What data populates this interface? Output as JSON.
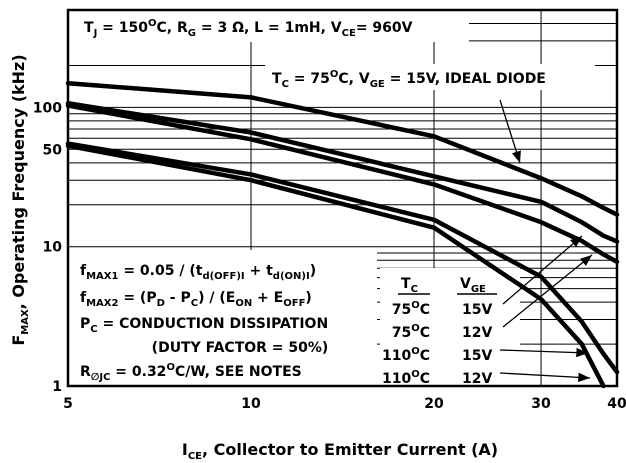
{
  "chart_data": {
    "type": "line",
    "title": [
      [
        "T",
        "n"
      ],
      [
        "J",
        "sub"
      ],
      [
        " = 150",
        "n"
      ],
      [
        "O",
        "sup"
      ],
      [
        "C, R",
        "n"
      ],
      [
        "G",
        "sub"
      ],
      [
        " = 3 Ω, L = 1mH, V",
        "n"
      ],
      [
        "CE",
        "sub"
      ],
      [
        "= 960V",
        "n"
      ]
    ],
    "xlabel": [
      [
        "I",
        "n"
      ],
      [
        "CE",
        "sub"
      ],
      [
        ", Collector to Emitter Current (A)",
        "n"
      ]
    ],
    "ylabel": [
      [
        "F",
        "n"
      ],
      [
        "MAX",
        "sub"
      ],
      [
        ", Operating Frequency (kHz)",
        "n"
      ]
    ],
    "xscale": "log",
    "yscale": "log",
    "x": [
      5,
      10,
      20,
      30,
      35,
      38,
      40
    ],
    "xlim": [
      5,
      40
    ],
    "ylim": [
      1,
      500
    ],
    "xticks": [
      5,
      10,
      20,
      30,
      40
    ],
    "yticks": [
      1,
      10,
      50,
      100
    ],
    "ygrid": [
      2,
      3,
      4,
      5,
      6,
      7,
      8,
      9,
      20,
      30,
      40,
      60,
      70,
      80,
      90,
      200,
      300,
      400
    ],
    "grid": true,
    "series": [
      {
        "color": "#000000",
        "label": [
          [
            "T",
            "n"
          ],
          [
            "C",
            "sub"
          ],
          [
            " = 75",
            "n"
          ],
          [
            "O",
            "sup"
          ],
          [
            "C, V",
            "n"
          ],
          [
            "GE",
            "sub"
          ],
          [
            " = 15V, IDEAL DIODE",
            "n"
          ]
        ],
        "values": [
          149,
          118,
          62,
          31,
          23,
          19,
          17
        ]
      },
      {
        "color": "#000000",
        "tc": [
          [
            "75",
            "n"
          ],
          [
            "O",
            "sup"
          ],
          [
            "C",
            "n"
          ]
        ],
        "vge": [
          [
            "15V",
            "n"
          ]
        ],
        "values": [
          107,
          66,
          32,
          21,
          15,
          12,
          10.9
        ]
      },
      {
        "color": "#000000",
        "tc": [
          [
            "75",
            "n"
          ],
          [
            "O",
            "sup"
          ],
          [
            "C",
            "n"
          ]
        ],
        "vge": [
          [
            "12V",
            "n"
          ]
        ],
        "values": [
          103,
          59,
          28,
          15,
          11,
          8.8,
          7.8
        ]
      },
      {
        "color": "#000000",
        "tc": [
          [
            "110",
            "n"
          ],
          [
            "O",
            "sup"
          ],
          [
            "C",
            "n"
          ]
        ],
        "vge": [
          [
            "15V",
            "n"
          ]
        ],
        "values": [
          55,
          33,
          15.6,
          6.1,
          2.9,
          1.7,
          1.26
        ]
      },
      {
        "color": "#000000",
        "tc": [
          [
            "110",
            "n"
          ],
          [
            "O",
            "sup"
          ],
          [
            "C",
            "n"
          ]
        ],
        "vge": [
          [
            "12V",
            "n"
          ]
        ],
        "values": [
          53,
          30,
          13.7,
          4.2,
          2,
          1.0,
          null
        ]
      }
    ],
    "legend_header": {
      "tc": [
        [
          "T",
          "n"
        ],
        [
          "C",
          "sub"
        ]
      ],
      "vge": [
        [
          "V",
          "n"
        ],
        [
          "GE",
          "sub"
        ]
      ]
    },
    "notes": [
      [
        [
          "f",
          "n"
        ],
        [
          "MAX1",
          "sub"
        ],
        [
          " = 0.05 / (t",
          "n"
        ],
        [
          "d(OFF)I",
          "sub"
        ],
        [
          " + t",
          "n"
        ],
        [
          "d(ON)I",
          "sub"
        ],
        [
          ")",
          "n"
        ]
      ],
      [
        [
          "f",
          "n"
        ],
        [
          "MAX2",
          "sub"
        ],
        [
          " = (P",
          "n"
        ],
        [
          "D",
          "sub"
        ],
        [
          " - P",
          "n"
        ],
        [
          "C",
          "sub"
        ],
        [
          ") / (E",
          "n"
        ],
        [
          "ON",
          "sub"
        ],
        [
          " + E",
          "n"
        ],
        [
          "OFF",
          "sub"
        ],
        [
          ")",
          "n"
        ]
      ],
      [
        [
          "P",
          "n"
        ],
        [
          "C",
          "sub"
        ],
        [
          " = CONDUCTION DISSIPATION",
          "n"
        ]
      ],
      [
        [
          "(DUTY FACTOR = 50%)",
          "n"
        ]
      ],
      [
        [
          "R",
          "n"
        ],
        [
          "∅JC",
          "sub"
        ],
        [
          " = 0.32",
          "n"
        ],
        [
          "O",
          "sup"
        ],
        [
          "C/W, SEE NOTES",
          "n"
        ]
      ]
    ]
  }
}
